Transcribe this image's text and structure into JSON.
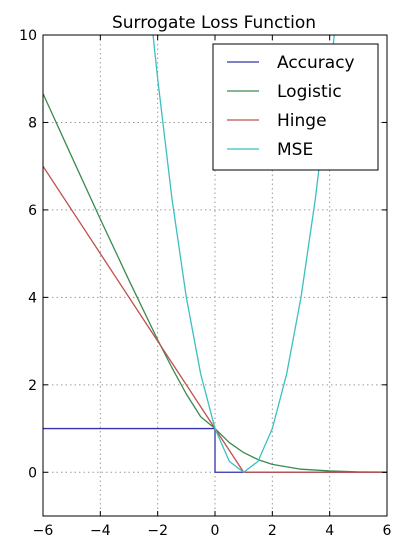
{
  "chart_data": {
    "type": "line",
    "title": "Surrogate Loss Function",
    "xlabel": "",
    "ylabel": "",
    "xlim": [
      -6,
      6
    ],
    "ylim": [
      -1,
      10
    ],
    "xticks": [
      -6,
      -4,
      -2,
      0,
      2,
      4,
      6
    ],
    "yticks": [
      0,
      2,
      4,
      6,
      8,
      10
    ],
    "xtick_labels": [
      "−6",
      "−4",
      "−2",
      "0",
      "2",
      "4",
      "6"
    ],
    "ytick_labels": [
      "0",
      "2",
      "4",
      "6",
      "8",
      "10"
    ],
    "grid": true,
    "legend_position": "top-right",
    "series": [
      {
        "name": "Accuracy",
        "color": "#3333aa",
        "x": [
          -6,
          0,
          0,
          6
        ],
        "y": [
          1,
          1,
          0,
          0
        ]
      },
      {
        "name": "Logistic",
        "color": "#3a8a4f",
        "x": [
          -6,
          -5,
          -4,
          -3,
          -2,
          -1.5,
          -1,
          -0.5,
          0,
          0.5,
          1,
          1.5,
          2,
          3,
          4,
          5,
          6
        ],
        "y": [
          8.66,
          7.22,
          5.79,
          4.39,
          3.03,
          2.39,
          1.79,
          1.27,
          1.0,
          0.68,
          0.45,
          0.29,
          0.18,
          0.07,
          0.03,
          0.01,
          0.004
        ]
      },
      {
        "name": "Hinge",
        "color": "#c0504d",
        "x": [
          -6,
          1,
          6
        ],
        "y": [
          7,
          0,
          0
        ]
      },
      {
        "name": "MSE",
        "color": "#3cbfbf",
        "x": [
          -2.2,
          -2,
          -1.5,
          -1,
          -0.5,
          0,
          0.5,
          1,
          1.5,
          2,
          2.5,
          3,
          3.5,
          4,
          4.2
        ],
        "y": [
          10.24,
          9,
          6.25,
          4,
          2.25,
          1,
          0.25,
          0,
          0.25,
          1,
          2.25,
          4,
          6.25,
          9,
          10.24
        ]
      }
    ]
  }
}
